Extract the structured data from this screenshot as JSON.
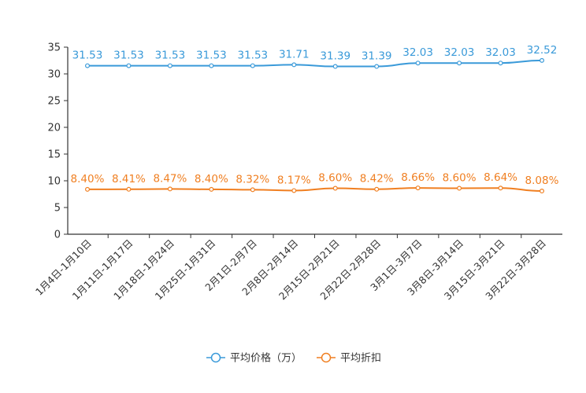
{
  "chart_data": {
    "type": "line",
    "title": "",
    "xlabel": "",
    "ylabel": "",
    "ylim": [
      0,
      35
    ],
    "yticks": [
      0,
      5,
      10,
      15,
      20,
      25,
      30,
      35
    ],
    "grid": false,
    "legend_position": "bottom",
    "categories": [
      "1月4日-1月10日",
      "1月11日-1月17日",
      "1月18日-1月24日",
      "1月25日-1月31日",
      "2月1日-2月7日",
      "2月8日-2月14日",
      "2月15日-2月21日",
      "2月22日-2月28日",
      "3月1日-3月7日",
      "3月8日-3月14日",
      "3月15日-3月21日",
      "3月22日-3月28日"
    ],
    "series": [
      {
        "name": "平均价格（万）",
        "color": "#3a9ad9",
        "values": [
          31.53,
          31.53,
          31.53,
          31.53,
          31.53,
          31.71,
          31.39,
          31.39,
          32.03,
          32.03,
          32.03,
          32.52
        ],
        "labels": [
          "31.53",
          "31.53",
          "31.53",
          "31.53",
          "31.53",
          "31.71",
          "31.39",
          "31.39",
          "32.03",
          "32.03",
          "32.03",
          "32.52"
        ]
      },
      {
        "name": "平均折扣",
        "color": "#f07f21",
        "values": [
          8.4,
          8.41,
          8.47,
          8.4,
          8.32,
          8.17,
          8.6,
          8.42,
          8.66,
          8.6,
          8.64,
          8.08
        ],
        "labels": [
          "8.40%",
          "8.41%",
          "8.47%",
          "8.40%",
          "8.32%",
          "8.17%",
          "8.60%",
          "8.42%",
          "8.66%",
          "8.60%",
          "8.64%",
          "8.08%"
        ]
      }
    ]
  }
}
